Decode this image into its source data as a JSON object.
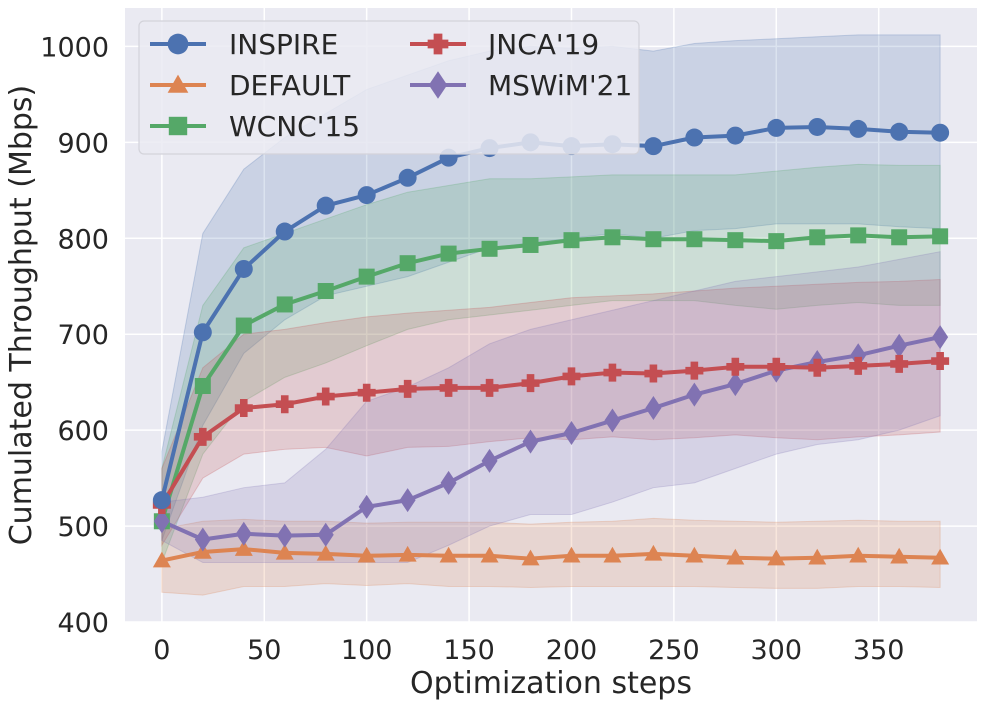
{
  "chart_data": {
    "type": "line",
    "title": "",
    "xlabel": "Optimization steps",
    "ylabel": "Cumulated Throughput (Mbps)",
    "xlim": [
      -18,
      398
    ],
    "ylim": [
      400,
      1040
    ],
    "xticks": [
      0,
      50,
      100,
      150,
      200,
      250,
      300,
      350
    ],
    "yticks": [
      400,
      500,
      600,
      700,
      800,
      900,
      1000
    ],
    "grid": true,
    "legend_position": "top-left",
    "x": [
      0,
      20,
      40,
      60,
      80,
      100,
      120,
      140,
      160,
      180,
      200,
      220,
      240,
      260,
      280,
      300,
      320,
      340,
      360,
      380
    ],
    "series": [
      {
        "name": "INSPIRE",
        "color": "#4c72b0",
        "marker": "circle",
        "values": [
          527,
          702,
          768,
          807,
          834,
          845,
          863,
          884,
          894,
          900,
          896,
          898,
          896,
          905,
          907,
          915,
          916,
          914,
          911,
          910
        ],
        "upper": [
          578,
          805,
          872,
          905,
          930,
          955,
          970,
          985,
          995,
          1000,
          998,
          1000,
          995,
          1003,
          1006,
          1008,
          1010,
          1012,
          1012,
          1012
        ],
        "lower": [
          485,
          605,
          680,
          715,
          740,
          750,
          760,
          775,
          790,
          795,
          800,
          805,
          800,
          808,
          810,
          815,
          815,
          815,
          812,
          810
        ]
      },
      {
        "name": "DEFAULT",
        "color": "#dd8452",
        "marker": "triangle",
        "values": [
          464,
          473,
          476,
          472,
          471,
          469,
          470,
          469,
          469,
          466,
          469,
          469,
          471,
          469,
          467,
          466,
          467,
          469,
          468,
          467
        ],
        "upper": [
          497,
          505,
          507,
          505,
          505,
          503,
          504,
          504,
          504,
          502,
          504,
          505,
          508,
          506,
          505,
          504,
          505,
          506,
          505,
          505
        ],
        "lower": [
          431,
          428,
          437,
          437,
          440,
          438,
          440,
          437,
          437,
          436,
          437,
          437,
          437,
          437,
          436,
          435,
          435,
          437,
          437,
          436
        ]
      },
      {
        "name": "WCNC'15",
        "color": "#55a868",
        "marker": "square",
        "values": [
          505,
          646,
          709,
          731,
          745,
          760,
          774,
          784,
          789,
          793,
          798,
          801,
          799,
          799,
          798,
          797,
          801,
          803,
          801,
          802
        ],
        "upper": [
          560,
          730,
          790,
          805,
          820,
          835,
          848,
          855,
          862,
          862,
          864,
          866,
          866,
          866,
          866,
          870,
          874,
          877,
          876,
          876
        ],
        "lower": [
          462,
          575,
          630,
          655,
          670,
          688,
          705,
          715,
          720,
          725,
          730,
          735,
          735,
          735,
          730,
          726,
          730,
          733,
          730,
          730
        ]
      },
      {
        "name": "JNCA'19",
        "color": "#c44e52",
        "marker": "plus",
        "values": [
          522,
          593,
          623,
          627,
          635,
          639,
          643,
          644,
          644,
          649,
          656,
          660,
          659,
          662,
          666,
          666,
          665,
          667,
          669,
          672
        ],
        "upper": [
          560,
          665,
          700,
          705,
          712,
          718,
          722,
          725,
          728,
          733,
          738,
          740,
          742,
          745,
          748,
          750,
          752,
          754,
          755,
          757
        ],
        "lower": [
          480,
          550,
          575,
          580,
          582,
          573,
          582,
          583,
          588,
          592,
          590,
          593,
          590,
          592,
          595,
          592,
          590,
          593,
          595,
          598
        ]
      },
      {
        "name": "MSWiM'21",
        "color": "#8172b2",
        "marker": "diamond",
        "values": [
          505,
          486,
          492,
          490,
          491,
          520,
          527,
          545,
          568,
          588,
          597,
          610,
          623,
          637,
          648,
          662,
          671,
          678,
          688,
          697
        ],
        "upper": [
          525,
          530,
          540,
          545,
          580,
          630,
          645,
          665,
          690,
          705,
          715,
          725,
          735,
          745,
          755,
          760,
          765,
          770,
          778,
          786
        ],
        "lower": [
          485,
          462,
          462,
          462,
          462,
          462,
          462,
          480,
          500,
          512,
          512,
          525,
          540,
          545,
          560,
          575,
          585,
          590,
          600,
          615
        ]
      }
    ]
  }
}
